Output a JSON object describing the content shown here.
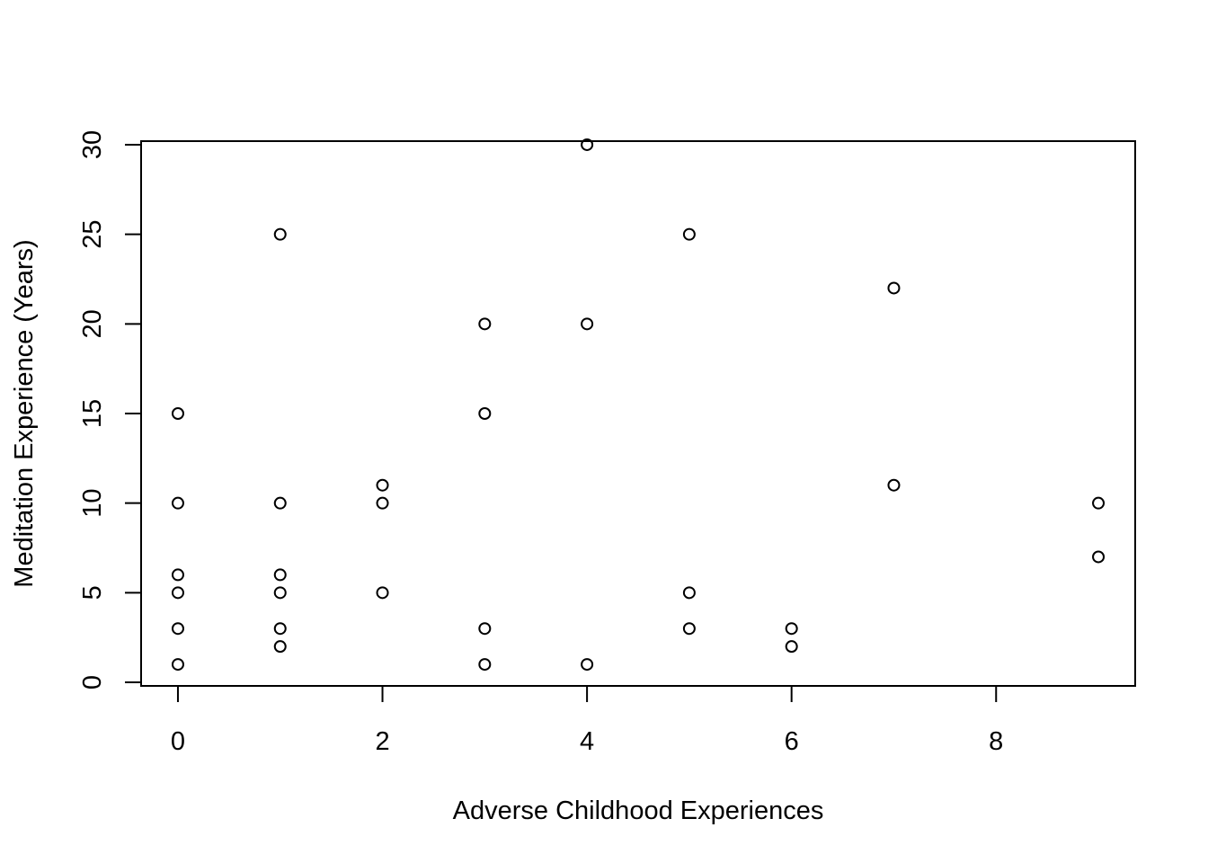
{
  "chart_data": {
    "type": "scatter",
    "xlabel": "Adverse Childhood Experiences",
    "ylabel": "Meditation Experience (Years)",
    "x_ticks": [
      "0",
      "2",
      "4",
      "6",
      "8"
    ],
    "y_ticks": [
      "0",
      "5",
      "10",
      "15",
      "20",
      "25",
      "30"
    ],
    "xlim": [
      -0.36,
      9.36
    ],
    "ylim": [
      -0.2,
      30.2
    ],
    "grid": false,
    "marker": "open-circle",
    "point_color": "#000000",
    "points": [
      {
        "x": 0,
        "y": 15
      },
      {
        "x": 0,
        "y": 10
      },
      {
        "x": 0,
        "y": 6
      },
      {
        "x": 0,
        "y": 5
      },
      {
        "x": 0,
        "y": 3
      },
      {
        "x": 0,
        "y": 1
      },
      {
        "x": 1,
        "y": 25
      },
      {
        "x": 1,
        "y": 10
      },
      {
        "x": 1,
        "y": 6
      },
      {
        "x": 1,
        "y": 5
      },
      {
        "x": 1,
        "y": 3
      },
      {
        "x": 1,
        "y": 2
      },
      {
        "x": 2,
        "y": 11
      },
      {
        "x": 2,
        "y": 10
      },
      {
        "x": 2,
        "y": 5
      },
      {
        "x": 3,
        "y": 20
      },
      {
        "x": 3,
        "y": 15
      },
      {
        "x": 3,
        "y": 3
      },
      {
        "x": 3,
        "y": 1
      },
      {
        "x": 4,
        "y": 30
      },
      {
        "x": 4,
        "y": 20
      },
      {
        "x": 4,
        "y": 1
      },
      {
        "x": 5,
        "y": 25
      },
      {
        "x": 5,
        "y": 5
      },
      {
        "x": 5,
        "y": 3
      },
      {
        "x": 6,
        "y": 3
      },
      {
        "x": 6,
        "y": 2
      },
      {
        "x": 7,
        "y": 22
      },
      {
        "x": 7,
        "y": 11
      },
      {
        "x": 9,
        "y": 10
      },
      {
        "x": 9,
        "y": 7
      }
    ]
  }
}
